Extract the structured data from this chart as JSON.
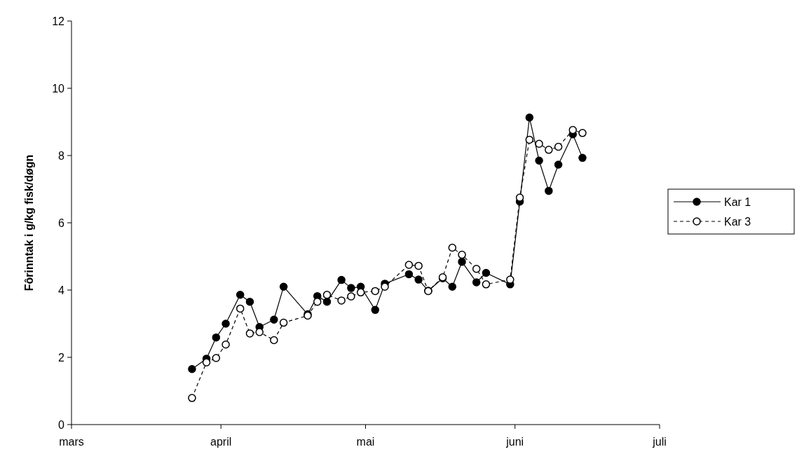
{
  "chart_data": {
    "type": "line",
    "ylabel": "Fôrinntak i g/kg fisk/døgn",
    "x": [
      "--03-26",
      "--03-29",
      "--03-31",
      "--04-02",
      "--04-05",
      "--04-07",
      "--04-09",
      "--04-12",
      "--04-14",
      "--04-19",
      "--04-21",
      "--04-23",
      "--04-26",
      "--04-28",
      "--04-30",
      "--05-03",
      "--05-05",
      "--05-10",
      "--05-12",
      "--05-14",
      "--05-17",
      "--05-19",
      "--05-21",
      "--05-24",
      "--05-26",
      "--05-31",
      "--06-02",
      "--06-04",
      "--06-06",
      "--06-08",
      "--06-10",
      "--06-13",
      "--06-15"
    ],
    "series": [
      {
        "name": "Kar 1",
        "color": "#000000",
        "line_style": "solid",
        "values": [
          1.65,
          1.96,
          2.59,
          3.0,
          3.86,
          3.65,
          2.9,
          3.12,
          4.1,
          3.28,
          3.82,
          3.65,
          4.3,
          4.06,
          4.1,
          3.41,
          4.19,
          4.47,
          4.31,
          3.98,
          4.35,
          4.1,
          4.84,
          4.23,
          4.51,
          4.17,
          6.63,
          9.13,
          7.85,
          6.95,
          7.73,
          8.63,
          7.93
        ]
      },
      {
        "name": "Kar 3",
        "color": "#000000",
        "line_style": "dashed",
        "values": [
          0.79,
          1.85,
          1.98,
          2.38,
          3.45,
          2.71,
          2.75,
          2.51,
          3.03,
          3.24,
          3.65,
          3.86,
          3.69,
          3.81,
          3.93,
          3.97,
          4.1,
          4.75,
          4.72,
          3.97,
          4.38,
          5.26,
          5.05,
          4.63,
          4.17,
          4.31,
          6.75,
          8.47,
          8.35,
          8.17,
          8.26,
          8.76,
          8.67
        ]
      }
    ],
    "xlim": [
      "--03-01",
      "--07-01"
    ],
    "xticks": [
      {
        "value": "--03-01",
        "label": "mars"
      },
      {
        "value": "--04-01",
        "label": "april"
      },
      {
        "value": "--05-01",
        "label": "mai"
      },
      {
        "value": "--06-01",
        "label": "juni"
      },
      {
        "value": "--07-01",
        "label": "juli"
      }
    ],
    "ylim": [
      0,
      12
    ],
    "yticks": [
      0,
      2,
      4,
      6,
      8,
      10,
      12
    ],
    "marker": "circle",
    "legend": "right",
    "grid": false
  }
}
